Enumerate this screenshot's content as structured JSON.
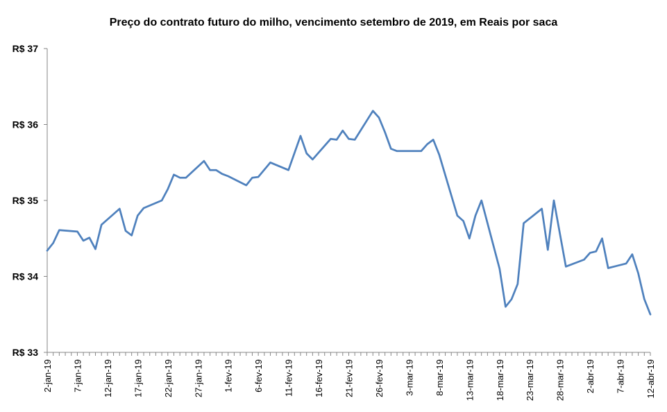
{
  "chart_data": {
    "type": "line",
    "title": "Preço do contrato futuro do milho, vencimento setembro de 2019, em Reais por saca",
    "xlabel": "",
    "ylabel": "",
    "ylim": [
      33,
      37
    ],
    "yticks": [
      {
        "value": 33,
        "label": "R$ 33"
      },
      {
        "value": 34,
        "label": "R$ 34"
      },
      {
        "value": 35,
        "label": "R$ 35"
      },
      {
        "value": 36,
        "label": "R$ 36"
      },
      {
        "value": 37,
        "label": "R$ 37"
      }
    ],
    "xlim": [
      "2019-01-02",
      "2019-04-12"
    ],
    "xticks": [
      {
        "date": "2019-01-02",
        "label": "2-jan-19"
      },
      {
        "date": "2019-01-07",
        "label": "7-jan-19"
      },
      {
        "date": "2019-01-12",
        "label": "12-jan-19"
      },
      {
        "date": "2019-01-17",
        "label": "17-jan-19"
      },
      {
        "date": "2019-01-22",
        "label": "22-jan-19"
      },
      {
        "date": "2019-01-27",
        "label": "27-jan-19"
      },
      {
        "date": "2019-02-01",
        "label": "1-fev-19"
      },
      {
        "date": "2019-02-06",
        "label": "6-fev-19"
      },
      {
        "date": "2019-02-11",
        "label": "11-fev-19"
      },
      {
        "date": "2019-02-16",
        "label": "16-fev-19"
      },
      {
        "date": "2019-02-21",
        "label": "21-fev-19"
      },
      {
        "date": "2019-02-26",
        "label": "26-fev-19"
      },
      {
        "date": "2019-03-03",
        "label": "3-mar-19"
      },
      {
        "date": "2019-03-08",
        "label": "8-mar-19"
      },
      {
        "date": "2019-03-13",
        "label": "13-mar-19"
      },
      {
        "date": "2019-03-18",
        "label": "18-mar-19"
      },
      {
        "date": "2019-03-23",
        "label": "23-mar-19"
      },
      {
        "date": "2019-03-28",
        "label": "28-mar-19"
      },
      {
        "date": "2019-04-02",
        "label": "2-abr-19"
      },
      {
        "date": "2019-04-07",
        "label": "7-abr-19"
      },
      {
        "date": "2019-04-12",
        "label": "12-abr-19"
      }
    ],
    "line_color": "#4F81BD",
    "grid": false,
    "legend": "none",
    "series": [
      {
        "points": [
          {
            "x": "2019-01-02",
            "y": 34.34
          },
          {
            "x": "2019-01-03",
            "y": 34.44
          },
          {
            "x": "2019-01-04",
            "y": 34.61
          },
          {
            "x": "2019-01-07",
            "y": 34.59
          },
          {
            "x": "2019-01-08",
            "y": 34.47
          },
          {
            "x": "2019-01-09",
            "y": 34.51
          },
          {
            "x": "2019-01-10",
            "y": 34.36
          },
          {
            "x": "2019-01-11",
            "y": 34.68
          },
          {
            "x": "2019-01-14",
            "y": 34.89
          },
          {
            "x": "2019-01-15",
            "y": 34.6
          },
          {
            "x": "2019-01-16",
            "y": 34.54
          },
          {
            "x": "2019-01-17",
            "y": 34.8
          },
          {
            "x": "2019-01-18",
            "y": 34.9
          },
          {
            "x": "2019-01-21",
            "y": 35.0
          },
          {
            "x": "2019-01-22",
            "y": 35.15
          },
          {
            "x": "2019-01-23",
            "y": 35.34
          },
          {
            "x": "2019-01-24",
            "y": 35.3
          },
          {
            "x": "2019-01-25",
            "y": 35.3
          },
          {
            "x": "2019-01-28",
            "y": 35.52
          },
          {
            "x": "2019-01-29",
            "y": 35.4
          },
          {
            "x": "2019-01-30",
            "y": 35.4
          },
          {
            "x": "2019-01-31",
            "y": 35.35
          },
          {
            "x": "2019-02-01",
            "y": 35.32
          },
          {
            "x": "2019-02-04",
            "y": 35.2
          },
          {
            "x": "2019-02-05",
            "y": 35.3
          },
          {
            "x": "2019-02-06",
            "y": 35.31
          },
          {
            "x": "2019-02-08",
            "y": 35.5
          },
          {
            "x": "2019-02-11",
            "y": 35.4
          },
          {
            "x": "2019-02-13",
            "y": 35.85
          },
          {
            "x": "2019-02-14",
            "y": 35.62
          },
          {
            "x": "2019-02-15",
            "y": 35.54
          },
          {
            "x": "2019-02-18",
            "y": 35.81
          },
          {
            "x": "2019-02-19",
            "y": 35.8
          },
          {
            "x": "2019-02-20",
            "y": 35.92
          },
          {
            "x": "2019-02-21",
            "y": 35.81
          },
          {
            "x": "2019-02-22",
            "y": 35.8
          },
          {
            "x": "2019-02-25",
            "y": 36.18
          },
          {
            "x": "2019-02-26",
            "y": 36.09
          },
          {
            "x": "2019-02-27",
            "y": 35.9
          },
          {
            "x": "2019-02-28",
            "y": 35.68
          },
          {
            "x": "2019-03-01",
            "y": 35.65
          },
          {
            "x": "2019-03-05",
            "y": 35.65
          },
          {
            "x": "2019-03-06",
            "y": 35.74
          },
          {
            "x": "2019-03-07",
            "y": 35.8
          },
          {
            "x": "2019-03-08",
            "y": 35.6
          },
          {
            "x": "2019-03-11",
            "y": 34.8
          },
          {
            "x": "2019-03-12",
            "y": 34.73
          },
          {
            "x": "2019-03-13",
            "y": 34.5
          },
          {
            "x": "2019-03-14",
            "y": 34.8
          },
          {
            "x": "2019-03-15",
            "y": 35.0
          },
          {
            "x": "2019-03-18",
            "y": 34.1
          },
          {
            "x": "2019-03-19",
            "y": 33.6
          },
          {
            "x": "2019-03-20",
            "y": 33.7
          },
          {
            "x": "2019-03-21",
            "y": 33.9
          },
          {
            "x": "2019-03-22",
            "y": 34.7
          },
          {
            "x": "2019-03-25",
            "y": 34.89
          },
          {
            "x": "2019-03-26",
            "y": 34.35
          },
          {
            "x": "2019-03-27",
            "y": 35.0
          },
          {
            "x": "2019-03-29",
            "y": 34.13
          },
          {
            "x": "2019-04-01",
            "y": 34.22
          },
          {
            "x": "2019-04-02",
            "y": 34.31
          },
          {
            "x": "2019-04-03",
            "y": 34.33
          },
          {
            "x": "2019-04-04",
            "y": 34.5
          },
          {
            "x": "2019-04-05",
            "y": 34.11
          },
          {
            "x": "2019-04-08",
            "y": 34.17
          },
          {
            "x": "2019-04-09",
            "y": 34.29
          },
          {
            "x": "2019-04-10",
            "y": 34.04
          },
          {
            "x": "2019-04-11",
            "y": 33.7
          },
          {
            "x": "2019-04-12",
            "y": 33.5
          }
        ]
      }
    ]
  }
}
